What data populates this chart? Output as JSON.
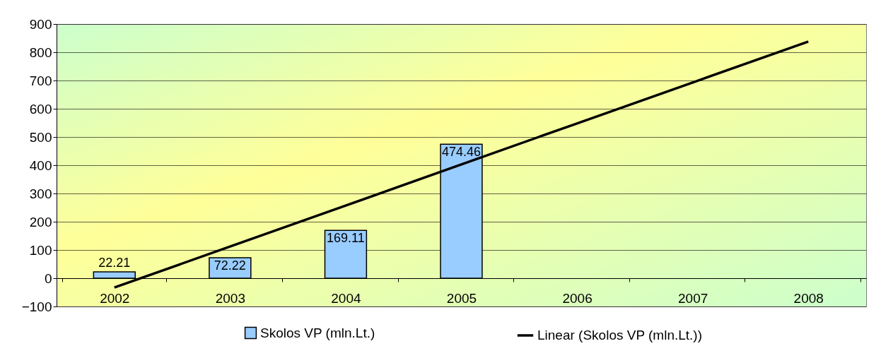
{
  "chart_data": {
    "type": "bar",
    "categories": [
      "2002",
      "2003",
      "2004",
      "2005",
      "2006",
      "2007",
      "2008"
    ],
    "series": [
      {
        "name": "Skolos VP (mln.Lt.)",
        "color": "#99ccff",
        "values": [
          22.21,
          72.22,
          169.11,
          474.46,
          null,
          null,
          null
        ],
        "value_labels": [
          "22.21",
          "72.22",
          "169.11",
          "474.46",
          null,
          null,
          null
        ]
      },
      {
        "name": "Linear (Skolos VP (mln.Lt.))",
        "type": "line",
        "color": "#000000",
        "values": [
          -33,
          112,
          257,
          403,
          548,
          693,
          838
        ]
      }
    ],
    "ylim": [
      -100,
      900
    ],
    "yticks": [
      -100,
      0,
      100,
      200,
      300,
      400,
      500,
      600,
      700,
      800,
      900
    ],
    "grid": "y",
    "legend": "bottom"
  }
}
